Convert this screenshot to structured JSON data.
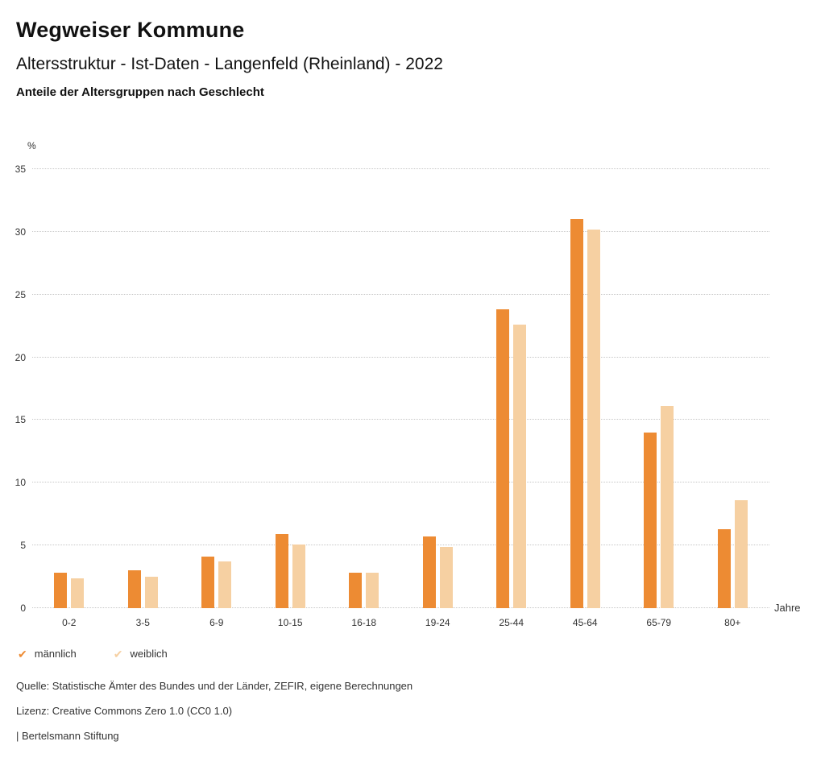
{
  "header": {
    "title": "Wegweiser Kommune",
    "subtitle": "Altersstruktur - Ist-Daten - Langenfeld (Rheinland) - 2022",
    "chart_heading": "Anteile der Altersgruppen nach Geschlecht"
  },
  "chart_data": {
    "type": "bar",
    "title": "Anteile der Altersgruppen nach Geschlecht",
    "categories": [
      "0-2",
      "3-5",
      "6-9",
      "10-15",
      "16-18",
      "19-24",
      "25-44",
      "45-64",
      "65-79",
      "80+"
    ],
    "series": [
      {
        "name": "männlich",
        "color": "#ed8b33",
        "values": [
          2.8,
          3.0,
          4.1,
          5.9,
          2.8,
          5.7,
          23.8,
          31.0,
          14.0,
          6.3
        ]
      },
      {
        "name": "weiblich",
        "color": "#f6d0a2",
        "values": [
          2.4,
          2.5,
          3.7,
          5.1,
          2.8,
          4.9,
          22.6,
          30.2,
          16.1,
          8.6
        ]
      }
    ],
    "ylabel": "%",
    "xlabel": "Jahre",
    "ylim": [
      0,
      35
    ],
    "yticks": [
      0,
      5,
      10,
      15,
      20,
      25,
      30,
      35
    ],
    "grid": "dotted-horizontal",
    "legend_position": "bottom-left",
    "legend_icon": "check-icon",
    "legend_check_glyph": "✔"
  },
  "footer": {
    "source": "Quelle: Statistische Ämter des Bundes und der Länder, ZEFIR, eigene Berechnungen",
    "license": "Lizenz: Creative Commons Zero 1.0 (CC0 1.0)",
    "attribution": "| Bertelsmann Stiftung"
  }
}
